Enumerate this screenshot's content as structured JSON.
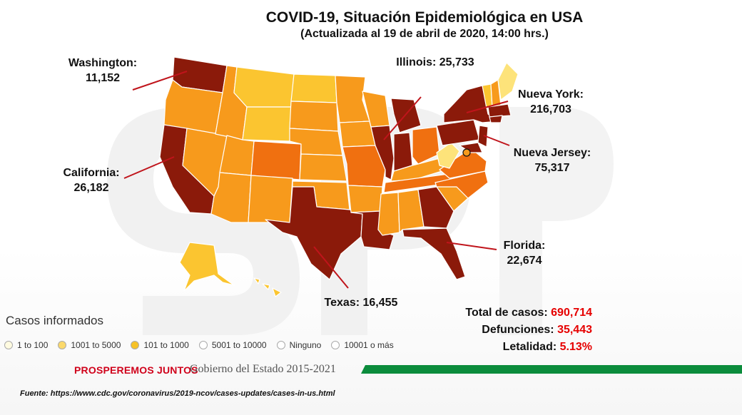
{
  "title": "COVID-19, Situación Epidemiológica en USA",
  "subtitle": "(Actualizada al 19 de abril de 2020, 14:00 hrs.)",
  "callouts": {
    "washington": {
      "name": "Washington:",
      "value": "11,152"
    },
    "illinois": {
      "text": "Illinois: 25,733"
    },
    "nueva_york": {
      "name": "Nueva York:",
      "value": "216,703"
    },
    "nueva_jersey": {
      "name": "Nueva Jersey:",
      "value": "75,317"
    },
    "california": {
      "name": "California:",
      "value": "26,182"
    },
    "florida": {
      "name": "Florida:",
      "value": "22,674"
    },
    "texas": {
      "text": "Texas: 16,455"
    }
  },
  "legend": {
    "title": "Casos informados",
    "items": [
      {
        "label": "1 to 100",
        "color": "#fffbe0"
      },
      {
        "label": "1001 to 5000",
        "color": "#fbd96b"
      },
      {
        "label": "101 to 1000",
        "color": "#f6c227"
      },
      {
        "label": "5001 to 10000",
        "color": "#ffffff"
      },
      {
        "label": "Ninguno",
        "color": "#ffffff"
      },
      {
        "label": "10001 o más",
        "color": "#ffffff"
      }
    ]
  },
  "stats": {
    "total_label": "Total de casos:",
    "total_value": "690,714",
    "deaths_label": "Defunciones:",
    "deaths_value": "35,443",
    "lethality_label": "Letalidad:",
    "lethality_value": "5.13%"
  },
  "footer": {
    "slogan": "PROSPEREMOS JUNTOS",
    "government": "Gobierno del Estado 2015-2021"
  },
  "source": "Fuente: https://www.cdc.gov/coronavirus/2019-ncov/cases-updates/cases-in-us.html",
  "colors": {
    "dark_red": "#8b1a0a",
    "orange_dark": "#f07010",
    "orange": "#f79a1c",
    "yellow": "#fbc530",
    "light_yellow": "#fde37a",
    "accent_red": "#e60000",
    "green_bar": "#0b8c3c"
  }
}
